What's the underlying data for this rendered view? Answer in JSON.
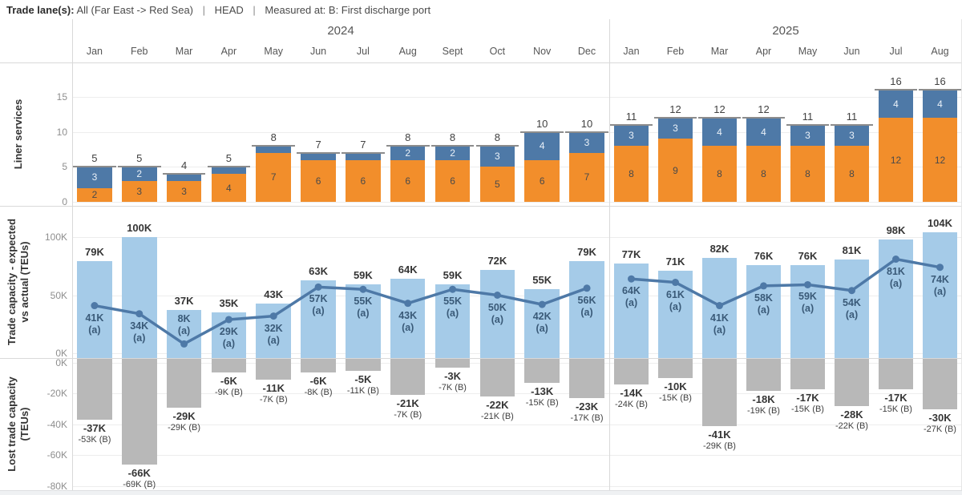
{
  "header": {
    "label": "Trade lane(s):",
    "value": "All (Far East -> Red Sea)",
    "sep1": "|",
    "head": "HEAD",
    "sep2": "|",
    "measured": "Measured at: B: First discharge port"
  },
  "years": [
    {
      "label": "2024",
      "months": [
        "Jan",
        "Feb",
        "Mar",
        "Apr",
        "May",
        "Jun",
        "Jul",
        "Aug",
        "Sept",
        "Oct",
        "Nov",
        "Dec"
      ]
    },
    {
      "label": "2025",
      "months": [
        "Jan",
        "Feb",
        "Mar",
        "Apr",
        "May",
        "Jun",
        "Jul",
        "Aug"
      ]
    }
  ],
  "colors": {
    "orange": "#f28e2b",
    "blue": "#4e79a7",
    "light_blue": "#a5cbe8",
    "gray": "#b8b8b8",
    "line": "#4e79a7",
    "line_label": "#3a5a78",
    "cap_line": "#8c8c8c",
    "orange_label": "#4a4a4a",
    "blue_label": "#eaf1f8",
    "tick": "#8e8e8e",
    "border": "#d9d9d9",
    "gridline": "#ededed"
  },
  "panels": {
    "liner": {
      "title": "Liner services",
      "title_lines": [
        "Liner services"
      ]
    },
    "capacity": {
      "title": "Trade capacity - expected vs actual (TEUs)",
      "title_lines": [
        "Trade capacity - expected",
        "vs actual (TEUs)"
      ]
    },
    "lost": {
      "title": "Lost trade capacity (TEUs)",
      "title_lines": [
        "Lost trade capacity",
        "(TEUs)"
      ]
    }
  },
  "chart_data": [
    {
      "type": "bar",
      "stacked": true,
      "title": "Liner services",
      "categories": [
        "Jan",
        "Feb",
        "Mar",
        "Apr",
        "May",
        "Jun",
        "Jul",
        "Aug",
        "Sept",
        "Oct",
        "Nov",
        "Dec",
        "Jan",
        "Feb",
        "Mar",
        "Apr",
        "May",
        "Jun",
        "Jul",
        "Aug"
      ],
      "category_groups": [
        {
          "label": "2024",
          "count": 12
        },
        {
          "label": "2025",
          "count": 8
        }
      ],
      "series": [
        {
          "name": "orange segment",
          "color": "#f28e2b",
          "values": [
            2,
            3,
            3,
            4,
            7,
            6,
            6,
            6,
            6,
            5,
            6,
            7,
            8,
            9,
            8,
            8,
            8,
            8,
            12,
            12
          ]
        },
        {
          "name": "blue segment",
          "color": "#4e79a7",
          "values": [
            3,
            2,
            1,
            1,
            1,
            1,
            1,
            2,
            2,
            3,
            4,
            3,
            3,
            3,
            4,
            4,
            3,
            3,
            4,
            4
          ]
        }
      ],
      "totals": [
        5,
        5,
        4,
        5,
        8,
        7,
        7,
        8,
        8,
        8,
        10,
        10,
        11,
        12,
        12,
        12,
        11,
        11,
        16,
        16
      ],
      "ylabel": "Liner services",
      "ylim": [
        0,
        16
      ],
      "yticks": [
        0,
        5,
        10,
        15
      ],
      "grid": true,
      "legend_position": "none",
      "min_label_value": 2
    },
    {
      "type": "bar+line",
      "title": "Trade capacity - expected vs actual (TEUs)",
      "bars": {
        "name": "expected capacity",
        "color": "#a5cbe8",
        "values_teu_k": [
          79,
          100,
          37,
          35,
          43,
          63,
          59,
          64,
          59,
          72,
          55,
          79,
          77,
          71,
          82,
          76,
          76,
          81,
          98,
          104
        ],
        "label_suffix": "K"
      },
      "line": {
        "name": "actual capacity",
        "color": "#4e79a7",
        "values_teu_k": [
          41,
          34,
          8,
          29,
          32,
          57,
          55,
          43,
          55,
          50,
          42,
          56,
          64,
          61,
          41,
          58,
          59,
          54,
          81,
          74
        ],
        "label_suffix": "K",
        "annotation": "(a)"
      },
      "ylabel": "Trade capacity - expected vs actual (TEUs)",
      "ylim_teu_k": [
        0,
        110
      ],
      "yticks": [
        {
          "label": "100K",
          "v": 100
        },
        {
          "label": "50K",
          "v": 50
        },
        {
          "label": "0K",
          "v": 0
        }
      ],
      "grid": true
    },
    {
      "type": "bar",
      "title": "Lost trade capacity (TEUs)",
      "color": "#b8b8b8",
      "values_teu_k": [
        -37,
        -66,
        -29,
        -6,
        -11,
        -6,
        -5,
        -21,
        -3,
        -22,
        -13,
        -23,
        -14,
        -10,
        -41,
        -18,
        -17,
        -28,
        -17,
        -30
      ],
      "bar_labels": [
        "-37K",
        "-66K",
        "-29K",
        "-6K",
        "-11K",
        "-6K",
        "-5K",
        "-21K",
        "-3K",
        "-22K",
        "-13K",
        "-23K",
        "-14K",
        "-10K",
        "-41K",
        "-18K",
        "-17K",
        "-28K",
        "-17K",
        "-30K"
      ],
      "sub_labels": [
        "-53K (B)",
        "-69K (B)",
        "-29K (B)",
        "-9K (B)",
        "-7K (B)",
        "-8K (B)",
        "-11K (B)",
        "-7K (B)",
        "-7K (B)",
        "-21K (B)",
        "-15K (B)",
        "-17K (B)",
        "-24K (B)",
        "-15K (B)",
        "-29K (B)",
        "-19K (B)",
        "-15K (B)",
        "-22K (B)",
        "-15K (B)",
        "-27K (B)"
      ],
      "ylabel": "Lost trade capacity (TEUs)",
      "ylim_teu_k": [
        -80,
        0
      ],
      "yticks": [
        {
          "label": "0K",
          "v": 0
        },
        {
          "label": "-20K",
          "v": -20
        },
        {
          "label": "-40K",
          "v": -40
        },
        {
          "label": "-60K",
          "v": -60
        },
        {
          "label": "-80K",
          "v": -80
        }
      ],
      "grid": true
    }
  ]
}
